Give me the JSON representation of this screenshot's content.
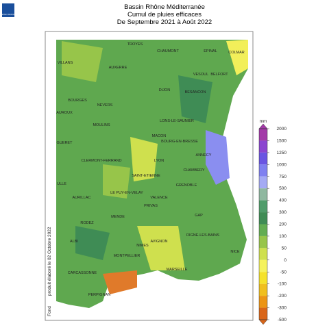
{
  "header": {
    "title": "Bassin Rhône Méditerranée",
    "subtitle": "Cumul de pluies efficaces",
    "period": "De Septembre 2021 à Août 2022"
  },
  "logo": {
    "text": "METEO FRANCE"
  },
  "side_note": "produit élaboré le 02 Octobre 2022",
  "side_source": "Fond",
  "cities": [
    "TROYES",
    "CHAUMONT",
    "EPINAL",
    "COLMAR",
    "VILLANS",
    "AUXERRE",
    "VESOUL",
    "BELFORT",
    "DIJON",
    "BESANCON",
    "BOURGES",
    "NEVERS",
    "AUROUX",
    "LONS-LE-SAUNIER",
    "MOULINS",
    "GUERET",
    "MACON",
    "BOURG-EN-BRESSE",
    "ANNECY",
    "LYON",
    "CLERMONT-FERRAND",
    "CHAMBERY",
    "SAINT-ETIENNE",
    "GRENOBLE",
    "ULLE",
    "AURILLAC",
    "LE PUY-EN-VELAY",
    "VALENCE",
    "PRIVAS",
    "GAP",
    "RODEZ",
    "MENDE",
    "DIGNE-LES-BAINS",
    "ALBI",
    "AVIGNON",
    "NIMES",
    "NICE",
    "MONTPELLIER",
    "CARCASSONNE",
    "MARSEILLE",
    "PERPIGNAN"
  ],
  "legend": {
    "unit": "mm",
    "levels": [
      2000,
      1500,
      1250,
      1000,
      750,
      500,
      400,
      300,
      200,
      100,
      50,
      0,
      -50,
      -100,
      -200,
      -300,
      -500
    ],
    "colors": [
      "#a33aa8",
      "#8b45d0",
      "#6a55e2",
      "#7f80f0",
      "#a4aaf4",
      "#8fb8a0",
      "#4f9c6a",
      "#3f8c55",
      "#63ad52",
      "#97c54a",
      "#cfe04e",
      "#f5f25c",
      "#f5e22a",
      "#f0bf1e",
      "#ec9515",
      "#d9661a"
    ]
  }
}
